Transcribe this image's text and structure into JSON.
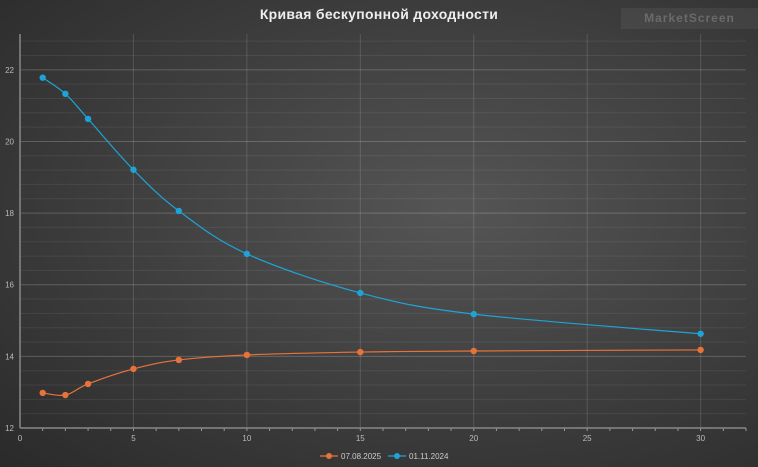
{
  "chart_data": {
    "type": "line",
    "title": "Кривая бескупонной доходности",
    "xlim": [
      0,
      32
    ],
    "ylim": [
      12,
      23
    ],
    "x_ticks": [
      0,
      5,
      10,
      15,
      20,
      25,
      30
    ],
    "y_ticks": [
      12,
      14,
      16,
      18,
      20,
      22
    ],
    "grid": true,
    "legend_position": "bottom",
    "series": [
      {
        "name": "07.08.2025",
        "color": "#e8733a",
        "x": [
          1,
          2,
          3,
          5,
          7,
          10,
          15,
          20,
          30
        ],
        "y": [
          12.98,
          12.92,
          13.23,
          13.65,
          13.9,
          14.04,
          14.12,
          14.15,
          14.18
        ]
      },
      {
        "name": "01.11.2024",
        "color": "#1fa3d6",
        "x": [
          1,
          2,
          3,
          5,
          7,
          10,
          15,
          20,
          30
        ],
        "y": [
          21.78,
          21.33,
          20.63,
          19.21,
          18.06,
          16.86,
          15.77,
          15.18,
          14.63
        ]
      }
    ]
  },
  "watermark": "MarketScreen"
}
